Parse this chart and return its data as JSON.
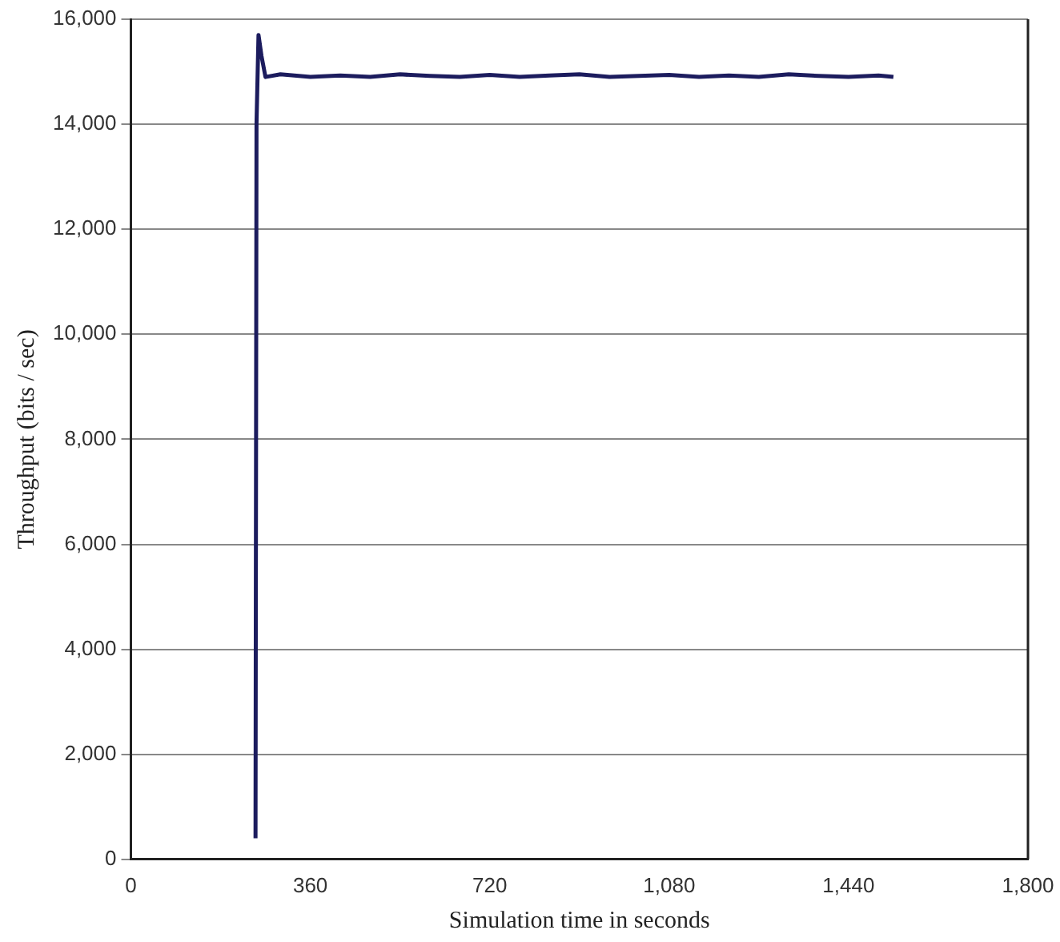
{
  "chart_data": {
    "type": "line",
    "xlabel": "Simulation time in seconds",
    "ylabel": "Throughput (bits / sec)",
    "xlim": [
      0,
      1800
    ],
    "xticks": [
      0,
      360,
      720,
      {
        "value": 1080,
        "label": "1,080"
      },
      {
        "value": 1440,
        "label": "1,440"
      },
      {
        "value": 1800,
        "label": "1,800"
      }
    ],
    "ylim": [
      0,
      16000
    ],
    "yticks": [
      0,
      {
        "value": 2000,
        "label": "2,000"
      },
      {
        "value": 4000,
        "label": "4,000"
      },
      {
        "value": 6000,
        "label": "6,000"
      },
      {
        "value": 8000,
        "label": "8,000"
      },
      {
        "value": 10000,
        "label": "10,000"
      },
      {
        "value": 12000,
        "label": "12,000"
      },
      {
        "value": 14000,
        "label": "14,000"
      },
      {
        "value": 16000,
        "label": "16,000"
      }
    ],
    "grid": "y",
    "legend": false,
    "marker": "none",
    "line_style": "solid",
    "series": [
      {
        "color": "#1c1c5e",
        "x": [
          250,
          252,
          256,
          262,
          270,
          300,
          360,
          420,
          480,
          540,
          600,
          660,
          720,
          780,
          840,
          900,
          960,
          1020,
          1080,
          1140,
          1200,
          1260,
          1320,
          1380,
          1440,
          1500,
          1530
        ],
        "values": [
          400,
          14000,
          15700,
          15300,
          14900,
          14950,
          14900,
          14930,
          14900,
          14950,
          14920,
          14900,
          14940,
          14900,
          14930,
          14950,
          14900,
          14920,
          14940,
          14900,
          14930,
          14900,
          14950,
          14920,
          14900,
          14930,
          14900
        ]
      }
    ]
  }
}
